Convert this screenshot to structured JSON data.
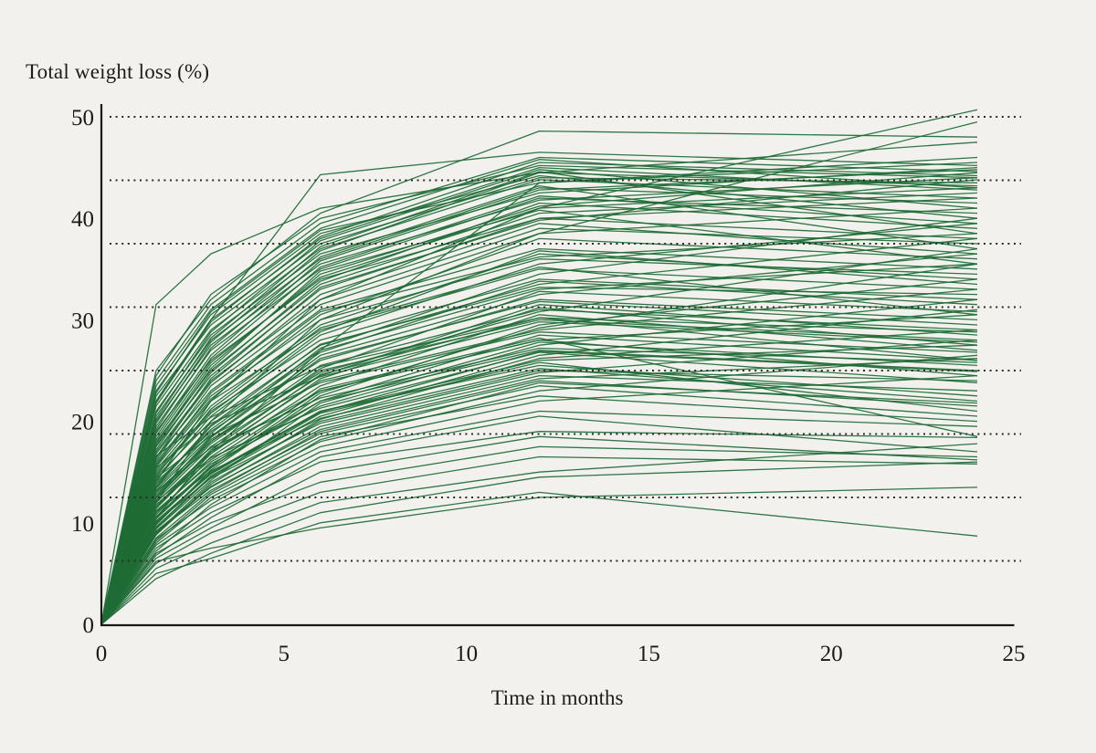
{
  "chart": {
    "title": "Total weight loss (%)",
    "xlabel": "Time in months"
  },
  "chart_data": {
    "type": "line",
    "title": "Total weight loss (%)",
    "xlabel": "Time in months",
    "ylabel": "Total weight loss (%)",
    "xlim": [
      0,
      25
    ],
    "ylim": [
      0,
      50
    ],
    "x_ticks": [
      0,
      5,
      10,
      15,
      20,
      25
    ],
    "y_ticks": [
      0,
      10,
      20,
      30,
      40,
      50
    ],
    "gridline_values": [
      6.25,
      12.5,
      18.75,
      25,
      31.25,
      37.5,
      43.75,
      50
    ],
    "grid_style": "horizontal dotted",
    "legend": "none",
    "line_color": "#1e6b35",
    "background_color": "#f2f1ee",
    "months": [
      0,
      1.5,
      3,
      6,
      12,
      24
    ],
    "series_format": "each array = total weight loss (%) at months [0, 1.5, 3, 6, 12, 24]",
    "series": [
      [
        0,
        31.5,
        36.5,
        41.0,
        44.5,
        47.5
      ],
      [
        0,
        25.0,
        32.0,
        40.5,
        48.6,
        48.0
      ],
      [
        0,
        14.0,
        22.0,
        32.0,
        41.0,
        50.7
      ],
      [
        0,
        12.0,
        20.0,
        30.0,
        38.5,
        49.5
      ],
      [
        0,
        22.0,
        30.0,
        44.3,
        46.5,
        45.2
      ],
      [
        0,
        10.5,
        17.0,
        27.0,
        43.5,
        46.0
      ],
      [
        0,
        5.0,
        6.5,
        10.0,
        13.0,
        8.7
      ],
      [
        0,
        6.2,
        7.5,
        9.5,
        12.5,
        13.5
      ],
      [
        0,
        4.5,
        7.0,
        11.0,
        14.5,
        16.0
      ],
      [
        0,
        6.0,
        9.0,
        13.0,
        16.5,
        15.8
      ],
      [
        0,
        7.0,
        10.0,
        14.0,
        17.5,
        16.5
      ],
      [
        0,
        5.5,
        8.0,
        12.0,
        15.0,
        17.8
      ],
      [
        0,
        6.5,
        9.5,
        15.0,
        18.5,
        16.2
      ],
      [
        0,
        7.5,
        11.0,
        16.0,
        19.0,
        18.4
      ],
      [
        0,
        8.5,
        13.0,
        19.0,
        24.0,
        21.5
      ],
      [
        0,
        9.0,
        14.0,
        20.0,
        25.0,
        24.0
      ],
      [
        0,
        10.0,
        15.0,
        21.0,
        26.0,
        27.5
      ],
      [
        0,
        11.0,
        16.0,
        22.0,
        27.0,
        25.0
      ],
      [
        0,
        12.0,
        17.0,
        23.0,
        28.0,
        30.5
      ],
      [
        0,
        13.0,
        18.0,
        25.0,
        30.0,
        28.0
      ],
      [
        0,
        9.5,
        14.5,
        20.5,
        26.5,
        31.0
      ],
      [
        0,
        10.5,
        15.5,
        22.0,
        28.5,
        26.0
      ],
      [
        0,
        11.5,
        17.0,
        24.0,
        29.0,
        33.0
      ],
      [
        0,
        12.5,
        18.0,
        25.5,
        31.0,
        29.0
      ],
      [
        0,
        14.0,
        19.0,
        26.0,
        32.0,
        30.0
      ],
      [
        0,
        13.5,
        19.5,
        27.0,
        33.0,
        35.5
      ],
      [
        0,
        15.0,
        21.0,
        28.0,
        34.0,
        32.0
      ],
      [
        0,
        14.5,
        20.0,
        27.5,
        33.5,
        38.0
      ],
      [
        0,
        15.5,
        22.0,
        29.0,
        35.0,
        33.0
      ],
      [
        0,
        16.0,
        22.5,
        30.0,
        36.0,
        34.5
      ],
      [
        0,
        8.0,
        12.5,
        18.0,
        23.0,
        26.5
      ],
      [
        0,
        9.2,
        13.5,
        19.5,
        24.5,
        23.0
      ],
      [
        0,
        10.8,
        16.5,
        23.5,
        30.5,
        27.0
      ],
      [
        0,
        11.2,
        15.8,
        21.5,
        27.5,
        32.0
      ],
      [
        0,
        12.2,
        17.5,
        24.5,
        31.5,
        28.5
      ],
      [
        0,
        13.2,
        18.5,
        26.5,
        32.5,
        36.5
      ],
      [
        0,
        9.8,
        15.2,
        22.5,
        29.5,
        34.0
      ],
      [
        0,
        10.2,
        14.8,
        21.0,
        25.5,
        22.5
      ],
      [
        0,
        11.8,
        16.2,
        23.0,
        28.0,
        24.5
      ],
      [
        0,
        12.8,
        18.2,
        24.8,
        30.8,
        37.0
      ],
      [
        0,
        13.8,
        19.2,
        26.8,
        33.8,
        31.5
      ],
      [
        0,
        14.2,
        20.5,
        28.5,
        35.5,
        39.5
      ],
      [
        0,
        15.2,
        21.5,
        29.5,
        36.5,
        34.0
      ],
      [
        0,
        16.5,
        23.0,
        31.0,
        37.0,
        35.0
      ],
      [
        0,
        8.8,
        13.8,
        20.2,
        26.2,
        29.0
      ],
      [
        0,
        9.4,
        14.2,
        21.8,
        27.8,
        25.5
      ],
      [
        0,
        10.4,
        15.4,
        22.8,
        29.2,
        35.5
      ],
      [
        0,
        11.4,
        16.8,
        24.2,
        31.2,
        27.5
      ],
      [
        0,
        12.4,
        17.8,
        25.2,
        32.8,
        30.8
      ],
      [
        0,
        13.4,
        18.8,
        27.2,
        34.5,
        40.0
      ],
      [
        0,
        14.8,
        20.8,
        28.8,
        36.8,
        33.5
      ],
      [
        0,
        15.8,
        22.2,
        30.5,
        38.0,
        36.0
      ],
      [
        0,
        16.2,
        23.5,
        31.5,
        38.5,
        41.0
      ],
      [
        0,
        17.0,
        24.0,
        32.0,
        39.0,
        37.5
      ],
      [
        0,
        8.2,
        12.8,
        18.5,
        22.5,
        20.0
      ],
      [
        0,
        9.6,
        14.6,
        20.8,
        25.8,
        21.0
      ],
      [
        0,
        10.6,
        15.6,
        23.2,
        28.2,
        18.5
      ],
      [
        0,
        11.6,
        17.2,
        24.6,
        30.2,
        26.0
      ],
      [
        0,
        12.6,
        18.4,
        26.2,
        31.8,
        29.5
      ],
      [
        0,
        13.6,
        19.6,
        27.6,
        33.2,
        32.5
      ],
      [
        0,
        14.6,
        21.2,
        29.2,
        35.2,
        30.5
      ],
      [
        0,
        15.6,
        22.8,
        30.8,
        36.2,
        38.5
      ],
      [
        0,
        16.8,
        23.8,
        32.5,
        39.5,
        36.5
      ],
      [
        0,
        17.5,
        24.5,
        33.0,
        40.0,
        38.0
      ],
      [
        0,
        18.0,
        25.0,
        33.5,
        40.5,
        42.5
      ],
      [
        0,
        17.2,
        24.8,
        33.8,
        41.5,
        39.0
      ],
      [
        0,
        18.2,
        25.8,
        34.2,
        41.0,
        43.0
      ],
      [
        0,
        19.0,
        26.0,
        34.0,
        40.0,
        42.0
      ],
      [
        0,
        19.5,
        27.0,
        35.0,
        42.0,
        40.5
      ],
      [
        0,
        20.0,
        27.5,
        35.5,
        41.8,
        44.0
      ],
      [
        0,
        20.5,
        28.0,
        36.0,
        43.0,
        41.5
      ],
      [
        0,
        21.0,
        28.5,
        36.5,
        42.5,
        45.0
      ],
      [
        0,
        21.5,
        29.0,
        37.0,
        43.8,
        42.0
      ],
      [
        0,
        22.5,
        29.5,
        37.5,
        44.0,
        43.5
      ],
      [
        0,
        18.8,
        26.5,
        35.8,
        42.8,
        44.8
      ],
      [
        0,
        19.8,
        27.8,
        36.8,
        44.5,
        43.2
      ],
      [
        0,
        20.8,
        28.8,
        37.8,
        44.8,
        41.0
      ],
      [
        0,
        17.8,
        25.5,
        34.5,
        41.2,
        44.5
      ],
      [
        0,
        22.0,
        30.0,
        38.0,
        45.0,
        42.8
      ],
      [
        0,
        23.0,
        30.5,
        38.5,
        44.2,
        40.0
      ],
      [
        0,
        16.4,
        24.2,
        33.2,
        39.8,
        43.8
      ],
      [
        0,
        18.5,
        26.2,
        35.2,
        42.2,
        39.5
      ],
      [
        0,
        21.8,
        29.8,
        38.2,
        45.5,
        44.2
      ],
      [
        0,
        23.5,
        31.0,
        39.0,
        45.8,
        43.0
      ],
      [
        0,
        24.0,
        31.5,
        39.5,
        46.0,
        44.6
      ],
      [
        0,
        22.8,
        30.8,
        38.8,
        43.5,
        45.5
      ],
      [
        0,
        19.2,
        27.2,
        36.2,
        43.2,
        37.0
      ],
      [
        0,
        20.2,
        28.2,
        37.2,
        44.6,
        38.5
      ],
      [
        0,
        17.6,
        25.2,
        34.8,
        40.8,
        35.5
      ],
      [
        0,
        24.5,
        32.5,
        40.0,
        45.2,
        44.0
      ],
      [
        0,
        7.8,
        11.5,
        17.0,
        21.0,
        19.5
      ],
      [
        0,
        8.4,
        12.2,
        17.5,
        22.0,
        24.5
      ],
      [
        0,
        9.1,
        13.2,
        18.8,
        23.5,
        20.5
      ],
      [
        0,
        10.1,
        14.4,
        19.8,
        24.8,
        28.0
      ],
      [
        0,
        11.1,
        15.1,
        20.3,
        25.2,
        22.0
      ],
      [
        0,
        12.1,
        16.4,
        21.3,
        26.8,
        23.8
      ],
      [
        0,
        13.1,
        17.4,
        22.3,
        27.2,
        25.8
      ],
      [
        0,
        14.4,
        18.6,
        23.8,
        28.8,
        26.8
      ],
      [
        0,
        15.4,
        19.8,
        24.4,
        29.8,
        27.8
      ],
      [
        0,
        16.6,
        20.4,
        25.4,
        30.2,
        28.8
      ],
      [
        0,
        6.8,
        10.5,
        16.5,
        20.5,
        17.0
      ],
      [
        0,
        7.2,
        11.8,
        18.2,
        23.8,
        21.8
      ],
      [
        0,
        8.9,
        13.6,
        19.2,
        24.2,
        26.2
      ],
      [
        0,
        9.9,
        14.9,
        20.9,
        26.9,
        24.9
      ]
    ]
  }
}
